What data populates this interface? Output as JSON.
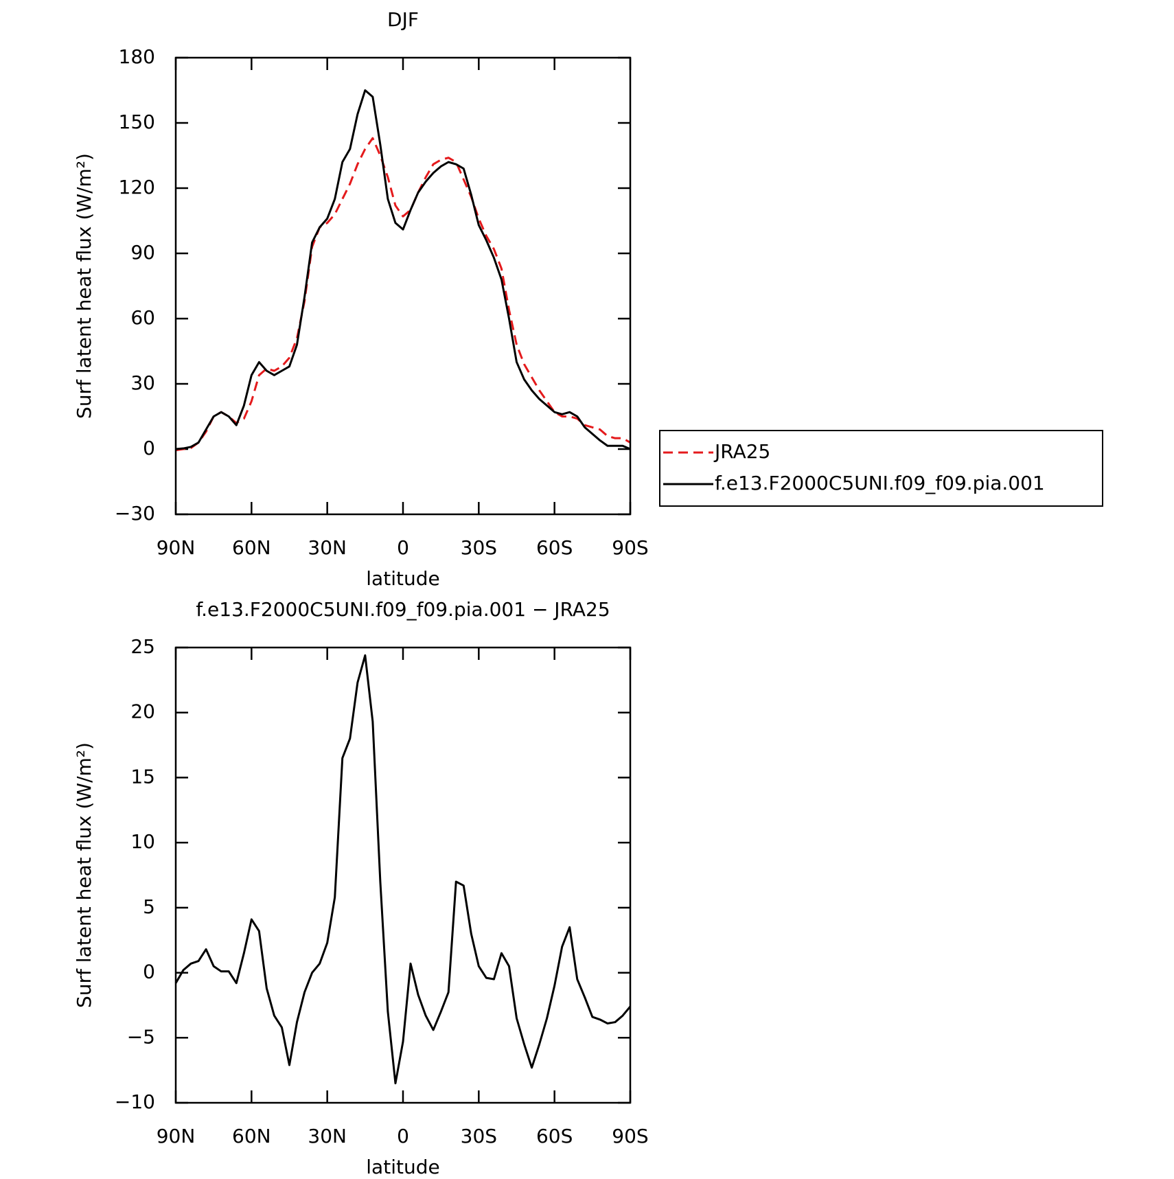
{
  "chart_data": [
    {
      "type": "line",
      "title": "DJF",
      "x_label": "latitude",
      "y_label": "Surf latent heat flux (W/m²)",
      "x": [
        90,
        87,
        84,
        81,
        78,
        75,
        72,
        69,
        66,
        63,
        60,
        57,
        54,
        51,
        48,
        45,
        42,
        39,
        36,
        33,
        30,
        27,
        24,
        21,
        18,
        15,
        12,
        9,
        6,
        3,
        0,
        -3,
        -6,
        -9,
        -12,
        -15,
        -18,
        -21,
        -24,
        -27,
        -30,
        -33,
        -36,
        -39,
        -42,
        -45,
        -48,
        -51,
        -54,
        -57,
        -60,
        -63,
        -66,
        -69,
        -72,
        -75,
        -78,
        -81,
        -84,
        -87,
        -90
      ],
      "xlim": [
        90,
        -90
      ],
      "xticks": [
        {
          "value": 90,
          "label": "90N"
        },
        {
          "value": 60,
          "label": "60N"
        },
        {
          "value": 30,
          "label": "30N"
        },
        0,
        {
          "value": -30,
          "label": "30S"
        },
        {
          "value": -60,
          "label": "60S"
        },
        {
          "value": -90,
          "label": "90S"
        }
      ],
      "ylim": [
        -30,
        180
      ],
      "yticks": [
        {
          "value": -30,
          "label": "−30"
        },
        0,
        30,
        60,
        90,
        120,
        150,
        180
      ],
      "legend": "right",
      "series": [
        {
          "name": "JRA25",
          "color": "#e41a1c",
          "line_style": "dashed",
          "values": [
            -0.5,
            0,
            0.5,
            3,
            8,
            15,
            17,
            15,
            12,
            14,
            22,
            34,
            37,
            36,
            38,
            42,
            51,
            68,
            93,
            102,
            104,
            108,
            115,
            122,
            131,
            138,
            143,
            135,
            125,
            112,
            107,
            110,
            118,
            125,
            131,
            133,
            134,
            132,
            124,
            116,
            106,
            98,
            92,
            83,
            64,
            48,
            39,
            33,
            27,
            22,
            17,
            15,
            15,
            14,
            11,
            10,
            9,
            6,
            5,
            5,
            3
          ]
        },
        {
          "name": "f.e13.F2000C5UNI.f09_f09.pia.001",
          "color": "#000000",
          "line_style": "solid",
          "values": [
            0,
            0.3,
            1,
            3,
            9,
            15,
            17,
            15,
            11,
            20,
            34,
            40,
            36,
            34,
            36,
            38,
            48,
            70,
            95,
            102,
            106,
            115,
            132,
            138,
            154,
            165,
            162,
            140,
            115,
            104,
            101,
            110,
            118,
            123,
            127,
            130,
            132,
            131,
            129,
            117,
            103,
            96,
            88,
            78,
            60,
            40,
            32,
            27,
            23,
            20,
            17,
            16,
            17,
            15,
            10,
            7,
            4,
            1.5,
            1.5,
            1.5,
            0
          ]
        }
      ]
    },
    {
      "type": "line",
      "title": "f.e13.F2000C5UNI.f09_f09.pia.001 − JRA25",
      "x_label": "latitude",
      "y_label": "Surf latent heat flux (W/m²)",
      "x": [
        90,
        87,
        84,
        81,
        78,
        75,
        72,
        69,
        66,
        63,
        60,
        57,
        54,
        51,
        48,
        45,
        42,
        39,
        36,
        33,
        30,
        27,
        24,
        21,
        18,
        15,
        12,
        9,
        6,
        3,
        0,
        -3,
        -6,
        -9,
        -12,
        -15,
        -18,
        -21,
        -24,
        -27,
        -30,
        -33,
        -36,
        -39,
        -42,
        -45,
        -48,
        -51,
        -54,
        -57,
        -60,
        -63,
        -66,
        -69,
        -72,
        -75,
        -78,
        -81,
        -84,
        -87,
        -90
      ],
      "xlim": [
        90,
        -90
      ],
      "xticks": [
        {
          "value": 90,
          "label": "90N"
        },
        {
          "value": 60,
          "label": "60N"
        },
        {
          "value": 30,
          "label": "30N"
        },
        0,
        {
          "value": -30,
          "label": "30S"
        },
        {
          "value": -60,
          "label": "60S"
        },
        {
          "value": -90,
          "label": "90S"
        }
      ],
      "ylim": [
        -10,
        25
      ],
      "yticks": [
        {
          "value": -10,
          "label": "−10"
        },
        {
          "value": -5,
          "label": "−5"
        },
        0,
        5,
        10,
        15,
        20,
        25
      ],
      "series": [
        {
          "color": "#000000",
          "line_style": "solid",
          "values": [
            -0.8,
            0.2,
            0.7,
            0.9,
            1.8,
            0.5,
            0.1,
            0.1,
            -0.8,
            1.5,
            4.1,
            3.2,
            -1.2,
            -3.3,
            -4.2,
            -7.1,
            -3.8,
            -1.5,
            0,
            0.7,
            2.3,
            5.8,
            16.5,
            18,
            22.3,
            24.4,
            19.3,
            7,
            -3,
            -8.5,
            -5.3,
            0.7,
            -1.7,
            -3.3,
            -4.4,
            -3,
            -1.5,
            7,
            6.7,
            3,
            0.5,
            -0.4,
            -0.5,
            1.5,
            0.5,
            -3.5,
            -5.5,
            -7.3,
            -5.5,
            -3.5,
            -1,
            2,
            3.5,
            -0.5,
            -1.9,
            -3.4,
            -3.6,
            -3.9,
            -3.8,
            -3.3,
            -2.6
          ]
        }
      ]
    }
  ]
}
